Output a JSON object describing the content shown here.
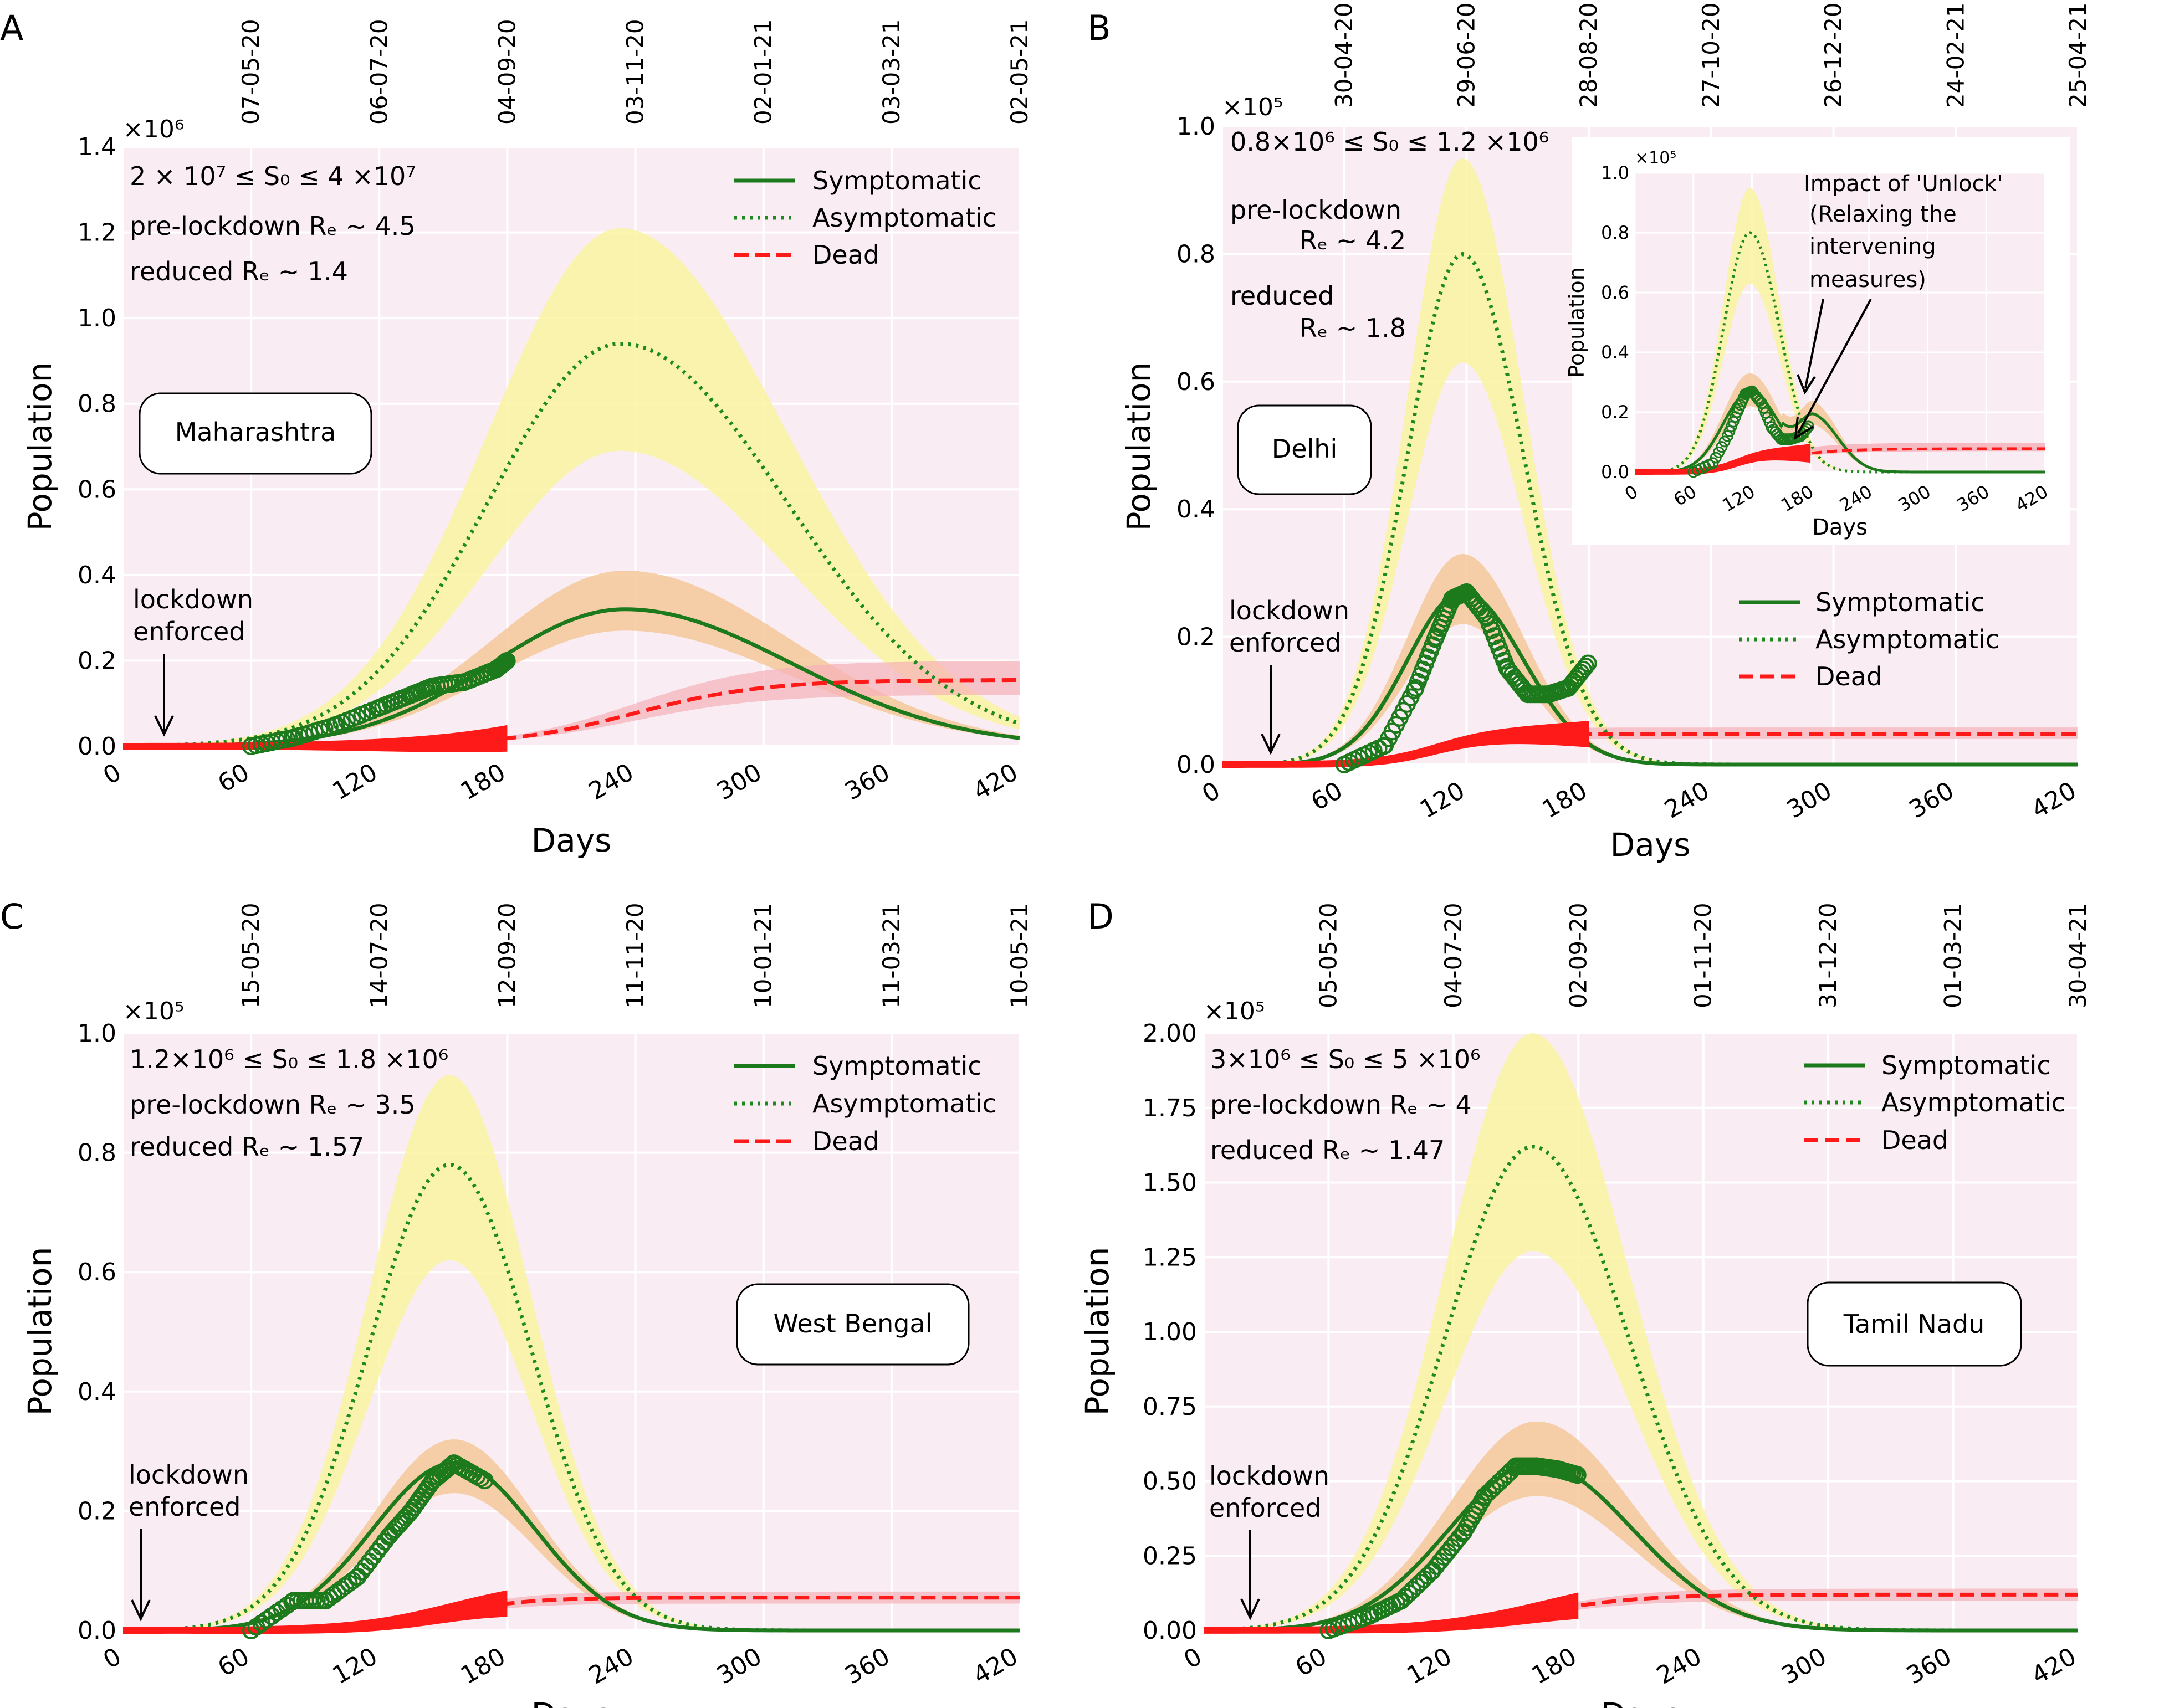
{
  "chart_data": [
    {
      "type": "line",
      "panel_label": "A",
      "region": "Maharashtra",
      "title": "",
      "xlabel": "Days",
      "ylabel": "Population",
      "xlim": [
        0,
        420
      ],
      "ylim": [
        0,
        1.4
      ],
      "x_ticks": [
        "0",
        "60",
        "120",
        "180",
        "240",
        "300",
        "360",
        "420"
      ],
      "y_ticks": [
        "0.0",
        "0.2",
        "0.4",
        "0.6",
        "0.8",
        "1.0",
        "1.2",
        "1.4"
      ],
      "y_scale_label": "×10⁶",
      "top_dates": [
        "07-05-20",
        "06-07-20",
        "04-09-20",
        "03-11-20",
        "02-01-21",
        "03-03-21",
        "02-05-21"
      ],
      "annotations": [
        "2 × 10⁷ ≤ S₀ ≤ 4 ×10⁷",
        "pre-lockdown Rₑ ~  4.5",
        "reduced Rₑ ~  1.4"
      ],
      "lockdown_label": [
        "lockdown",
        "enforced"
      ],
      "lockdown_day": 18,
      "legend": [
        "Symptomatic",
        "Asymptomatic",
        "Dead"
      ],
      "legend_position": "top-right",
      "series": [
        {
          "name": "Symptomatic",
          "peak_day": 235,
          "peak": 0.32,
          "band": [
            0.27,
            0.41
          ],
          "width_left": 62,
          "width_right": 78
        },
        {
          "name": "Asymptomatic",
          "peak_day": 233,
          "peak": 0.94,
          "band": [
            0.69,
            1.21
          ],
          "width_left": 62,
          "width_right": 78
        },
        {
          "name": "Dead",
          "final": 0.155,
          "band": [
            0.12,
            0.2
          ],
          "mid_day": 240,
          "steep": 30
        },
        {
          "name": "Observed symptomatic",
          "points": [
            [
              60,
              0.0
            ],
            [
              80,
              0.02
            ],
            [
              100,
              0.05
            ],
            [
              120,
              0.09
            ],
            [
              135,
              0.12
            ],
            [
              145,
              0.14
            ],
            [
              160,
              0.15
            ],
            [
              175,
              0.18
            ],
            [
              180,
              0.2
            ]
          ]
        }
      ]
    },
    {
      "type": "line",
      "panel_label": "B",
      "region": "Delhi",
      "title": "",
      "xlabel": "Days",
      "ylabel": "Population",
      "xlim": [
        0,
        420
      ],
      "ylim": [
        0,
        1.0
      ],
      "x_ticks": [
        "0",
        "60",
        "120",
        "180",
        "240",
        "300",
        "360",
        "420"
      ],
      "y_ticks": [
        "0.0",
        "0.2",
        "0.4",
        "0.6",
        "0.8",
        "1.0"
      ],
      "y_scale_label": "×10⁵",
      "top_dates": [
        "30-04-20",
        "29-06-20",
        "28-08-20",
        "27-10-20",
        "26-12-20",
        "24-02-21",
        "25-04-21"
      ],
      "annotations": [
        "0.8×10⁶ ≤ S₀ ≤ 1.2 ×10⁶",
        "pre-lockdown",
        "Rₑ ~  4.2",
        "reduced",
        "Rₑ ~  1.8"
      ],
      "lockdown_label": [
        "lockdown",
        "enforced"
      ],
      "lockdown_day": 24,
      "legend": [
        "Symptomatic",
        "Asymptomatic",
        "Dead"
      ],
      "legend_position": "middle-right",
      "series": [
        {
          "name": "Symptomatic",
          "peak_day": 118,
          "peak": 0.27,
          "band": [
            0.22,
            0.33
          ],
          "width_left": 27,
          "width_right": 30
        },
        {
          "name": "Asymptomatic",
          "peak_day": 118,
          "peak": 0.8,
          "band": [
            0.63,
            0.95
          ],
          "width_left": 27,
          "width_right": 30
        },
        {
          "name": "Dead",
          "final": 0.048,
          "band": [
            0.04,
            0.058
          ],
          "mid_day": 105,
          "steep": 14
        },
        {
          "name": "Observed symptomatic",
          "points": [
            [
              60,
              0.0
            ],
            [
              80,
              0.03
            ],
            [
              95,
              0.12
            ],
            [
              105,
              0.2
            ],
            [
              113,
              0.26
            ],
            [
              120,
              0.27
            ],
            [
              130,
              0.23
            ],
            [
              140,
              0.15
            ],
            [
              150,
              0.11
            ],
            [
              160,
              0.11
            ],
            [
              170,
              0.12
            ],
            [
              180,
              0.16
            ]
          ]
        }
      ],
      "inset": {
        "xlabel": "Days",
        "ylabel": "Population",
        "y_ticks": [
          "0.0",
          "0.2",
          "0.4",
          "0.6",
          "0.8",
          "1.0"
        ],
        "x_ticks": [
          "0",
          "60",
          "120",
          "180",
          "240",
          "300",
          "360",
          "420"
        ],
        "y_scale_label": "×10⁵",
        "note": [
          "Impact of 'Unlock'",
          "(Relaxing the",
          "intervening",
          "measures)"
        ]
      }
    },
    {
      "type": "line",
      "panel_label": "C",
      "region": "West Bengal",
      "title": "",
      "xlabel": "Days",
      "ylabel": "Population",
      "xlim": [
        0,
        420
      ],
      "ylim": [
        0,
        1.0
      ],
      "x_ticks": [
        "0",
        "60",
        "120",
        "180",
        "240",
        "300",
        "360",
        "420"
      ],
      "y_ticks": [
        "0.0",
        "0.2",
        "0.4",
        "0.6",
        "0.8",
        "1.0"
      ],
      "y_scale_label": "×10⁵",
      "top_dates": [
        "15-05-20",
        "14-07-20",
        "12-09-20",
        "11-11-20",
        "10-01-21",
        "11-03-21",
        "10-05-21"
      ],
      "annotations": [
        "1.2×10⁶ ≤ S₀ ≤  1.8 ×10⁶",
        "pre-lockdown Rₑ ~  3.5",
        "reduced Rₑ ~  1.57"
      ],
      "lockdown_label": [
        "lockdown",
        "enforced"
      ],
      "lockdown_day": 8,
      "legend": [
        "Symptomatic",
        "Asymptomatic",
        "Dead"
      ],
      "legend_position": "top-right",
      "series": [
        {
          "name": "Symptomatic",
          "peak_day": 155,
          "peak": 0.28,
          "band": [
            0.23,
            0.32
          ],
          "width_left": 38,
          "width_right": 38
        },
        {
          "name": "Asymptomatic",
          "peak_day": 153,
          "peak": 0.78,
          "band": [
            0.62,
            0.93
          ],
          "width_left": 38,
          "width_right": 38
        },
        {
          "name": "Dead",
          "final": 0.055,
          "band": [
            0.045,
            0.065
          ],
          "mid_day": 150,
          "steep": 20
        },
        {
          "name": "Observed symptomatic",
          "points": [
            [
              60,
              0.0
            ],
            [
              80,
              0.05
            ],
            [
              95,
              0.05
            ],
            [
              110,
              0.09
            ],
            [
              125,
              0.16
            ],
            [
              135,
              0.2
            ],
            [
              145,
              0.25
            ],
            [
              155,
              0.28
            ],
            [
              170,
              0.25
            ]
          ]
        }
      ]
    },
    {
      "type": "line",
      "panel_label": "D",
      "region": "Tamil Nadu",
      "title": "",
      "xlabel": "Days",
      "ylabel": "Population",
      "xlim": [
        0,
        420
      ],
      "ylim": [
        0,
        2.0
      ],
      "x_ticks": [
        "0",
        "60",
        "120",
        "180",
        "240",
        "300",
        "360",
        "420"
      ],
      "y_ticks": [
        "0.00",
        "0.25",
        "0.50",
        "0.75",
        "1.00",
        "1.25",
        "1.50",
        "1.75",
        "2.00"
      ],
      "y_scale_label": "×10⁵",
      "top_dates": [
        "05-05-20",
        "04-07-20",
        "02-09-20",
        "01-11-20",
        "31-12-20",
        "01-03-21",
        "30-04-21"
      ],
      "annotations": [
        "3×10⁶ ≤ S₀ ≤ 5 ×10⁶",
        "pre-lockdown Rₑ ~  4",
        "reduced Rₑ ~  1.47"
      ],
      "lockdown_label": [
        "lockdown",
        "enforced"
      ],
      "lockdown_day": 20,
      "legend": [
        "Symptomatic",
        "Asymptomatic",
        "Dead"
      ],
      "legend_position": "top-right",
      "series": [
        {
          "name": "Symptomatic",
          "peak_day": 160,
          "peak": 0.56,
          "band": [
            0.45,
            0.7
          ],
          "width_left": 42,
          "width_right": 46
        },
        {
          "name": "Asymptomatic",
          "peak_day": 158,
          "peak": 1.62,
          "band": [
            1.27,
            2.0
          ],
          "width_left": 42,
          "width_right": 46
        },
        {
          "name": "Dead",
          "final": 0.12,
          "band": [
            0.1,
            0.14
          ],
          "mid_day": 160,
          "steep": 25
        },
        {
          "name": "Observed symptomatic",
          "points": [
            [
              60,
              0.0
            ],
            [
              80,
              0.05
            ],
            [
              95,
              0.1
            ],
            [
              110,
              0.2
            ],
            [
              125,
              0.33
            ],
            [
              135,
              0.45
            ],
            [
              150,
              0.55
            ],
            [
              160,
              0.55
            ],
            [
              170,
              0.54
            ],
            [
              180,
              0.52
            ]
          ]
        }
      ]
    }
  ],
  "colors": {
    "plot_bg": "#f9edf3",
    "grid": "#ffffff",
    "symptomatic": "#1c7a1c",
    "asymptomatic": "#1c8a1c",
    "asym_band": "#faf3a0",
    "sym_band": "#f5c89a",
    "dead": "#ff1a1a",
    "dead_band": "#f7b0b8"
  }
}
